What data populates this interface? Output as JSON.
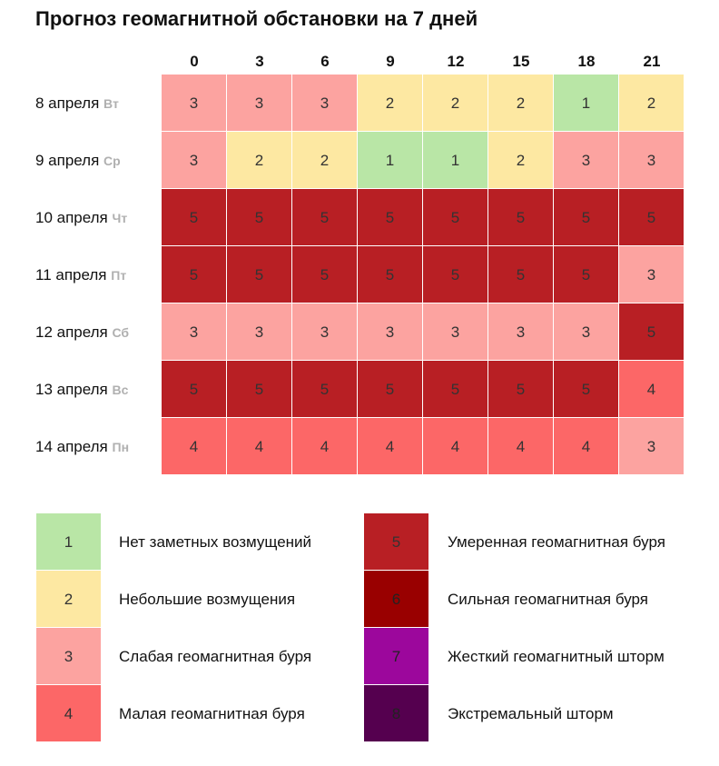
{
  "title": "Прогноз геомагнитной обстановки на 7 дней",
  "colors": {
    "1": "#b9e6a6",
    "2": "#fde8a2",
    "3": "#fca3a0",
    "4": "#fc6767",
    "5": "#b81f24",
    "6": "#990000",
    "7": "#9c079c",
    "8": "#55004f"
  },
  "chart_data": {
    "type": "heatmap",
    "title": "Прогноз геомагнитной обстановки на 7 дней",
    "hours": [
      "0",
      "3",
      "6",
      "9",
      "12",
      "15",
      "18",
      "21"
    ],
    "rows": [
      {
        "date": "8 апреля",
        "day": "Вт",
        "values": [
          3,
          3,
          3,
          2,
          2,
          2,
          1,
          2
        ]
      },
      {
        "date": "9 апреля",
        "day": "Ср",
        "values": [
          3,
          2,
          2,
          1,
          1,
          2,
          3,
          3
        ]
      },
      {
        "date": "10 апреля",
        "day": "Чт",
        "values": [
          5,
          5,
          5,
          5,
          5,
          5,
          5,
          5
        ]
      },
      {
        "date": "11 апреля",
        "day": "Пт",
        "values": [
          5,
          5,
          5,
          5,
          5,
          5,
          5,
          3
        ]
      },
      {
        "date": "12 апреля",
        "day": "Сб",
        "values": [
          3,
          3,
          3,
          3,
          3,
          3,
          3,
          5
        ]
      },
      {
        "date": "13 апреля",
        "day": "Вс",
        "values": [
          5,
          5,
          5,
          5,
          5,
          5,
          5,
          4
        ]
      },
      {
        "date": "14 апреля",
        "day": "Пн",
        "values": [
          4,
          4,
          4,
          4,
          4,
          4,
          4,
          3
        ]
      }
    ]
  },
  "legend": [
    {
      "level": "1",
      "label": "Нет заметных возмущений"
    },
    {
      "level": "2",
      "label": "Небольшие возмущения"
    },
    {
      "level": "3",
      "label": "Слабая геомагнитная буря"
    },
    {
      "level": "4",
      "label": "Малая геомагнитная буря"
    },
    {
      "level": "5",
      "label": "Умеренная геомагнитная буря"
    },
    {
      "level": "6",
      "label": "Сильная геомагнитная буря"
    },
    {
      "level": "7",
      "label": "Жесткий геомагнитный шторм"
    },
    {
      "level": "8",
      "label": "Экстремальный шторм"
    }
  ]
}
